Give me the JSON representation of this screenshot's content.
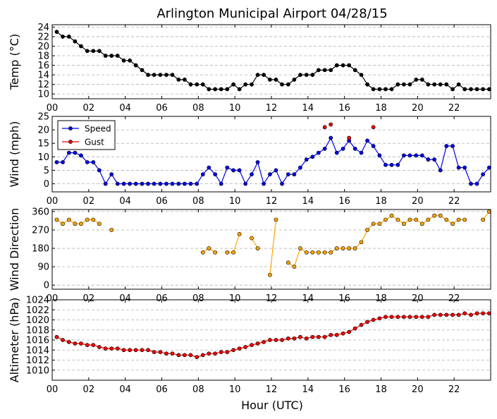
{
  "title": "Arlington Municipal Airport 04/28/15",
  "xlabel": "Hour (UTC)",
  "x_ticks": [
    "00",
    "02",
    "04",
    "06",
    "08",
    "10",
    "12",
    "14",
    "16",
    "18",
    "20",
    "22"
  ],
  "colors": {
    "temp": "#000000",
    "speed": "#0000ee",
    "gust": "#ee0000",
    "dir": "#ffa500",
    "alt": "#ee0000",
    "grid": "#b0b0b0"
  },
  "chart_data": [
    {
      "type": "line",
      "ylabel": "Temp (°C)",
      "ylim": [
        9,
        24.5
      ],
      "yticks": [
        10,
        12,
        14,
        16,
        18,
        20,
        22,
        24
      ],
      "xlim": [
        0,
        24
      ],
      "series": [
        {
          "name": "Temp",
          "x": [
            0.25,
            0.58,
            0.92,
            1.25,
            1.58,
            1.92,
            2.25,
            2.58,
            2.92,
            3.25,
            3.58,
            3.92,
            4.25,
            4.58,
            4.92,
            5.25,
            5.58,
            5.92,
            6.25,
            6.58,
            6.92,
            7.25,
            7.58,
            7.92,
            8.25,
            8.58,
            8.92,
            9.25,
            9.58,
            9.92,
            10.25,
            10.58,
            10.92,
            11.25,
            11.58,
            11.92,
            12.25,
            12.58,
            12.92,
            13.25,
            13.58,
            13.92,
            14.25,
            14.58,
            14.92,
            15.25,
            15.58,
            15.92,
            16.25,
            16.58,
            16.92,
            17.25,
            17.58,
            17.92,
            18.25,
            18.58,
            18.92,
            19.25,
            19.58,
            19.92,
            20.25,
            20.58,
            20.92,
            21.25,
            21.58,
            21.92,
            22.25,
            22.58,
            22.92,
            23.25,
            23.58,
            23.92
          ],
          "values": [
            23,
            22,
            22,
            21,
            20,
            19,
            19,
            19,
            18,
            18,
            18,
            17,
            17,
            16,
            15,
            14,
            14,
            14,
            14,
            14,
            13,
            13,
            12,
            12,
            12,
            11,
            11,
            11,
            11,
            12,
            11,
            12,
            12,
            14,
            14,
            13,
            13,
            12,
            12,
            13,
            14,
            14,
            14,
            15,
            15,
            15,
            16,
            16,
            16,
            15,
            14,
            12,
            11,
            11,
            11,
            11,
            12,
            12,
            12,
            13,
            13,
            12,
            12,
            12,
            12,
            11,
            12,
            11,
            11,
            11,
            11,
            11
          ]
        }
      ]
    },
    {
      "type": "line",
      "ylabel": "Wind (mph)",
      "ylim": [
        -3,
        25
      ],
      "yticks": [
        0,
        5,
        10,
        15,
        20,
        25
      ],
      "xlim": [
        0,
        24
      ],
      "legend": {
        "position": "top-left",
        "labels": [
          "Speed",
          "Gust"
        ]
      },
      "series": [
        {
          "name": "Speed",
          "x": [
            0.25,
            0.58,
            0.92,
            1.25,
            1.58,
            1.92,
            2.25,
            2.58,
            2.92,
            3.25,
            3.58,
            3.92,
            4.25,
            4.58,
            4.92,
            5.25,
            5.58,
            5.92,
            6.25,
            6.58,
            6.92,
            7.25,
            7.58,
            7.92,
            8.25,
            8.58,
            8.92,
            9.25,
            9.58,
            9.92,
            10.25,
            10.58,
            10.92,
            11.25,
            11.58,
            11.92,
            12.25,
            12.58,
            12.92,
            13.25,
            13.58,
            13.92,
            14.25,
            14.58,
            14.92,
            15.25,
            15.58,
            15.92,
            16.25,
            16.58,
            16.92,
            17.25,
            17.58,
            17.92,
            18.25,
            18.58,
            18.92,
            19.25,
            19.58,
            19.92,
            20.25,
            20.58,
            20.92,
            21.25,
            21.58,
            21.92,
            22.25,
            22.58,
            22.92,
            23.25,
            23.58,
            23.92
          ],
          "values": [
            8,
            8,
            11.5,
            11.5,
            10.5,
            8,
            8,
            5,
            0,
            3.5,
            0,
            0,
            0,
            0,
            0,
            0,
            0,
            0,
            0,
            0,
            0,
            0,
            0,
            0,
            3.5,
            6,
            3.5,
            0,
            6,
            5,
            5,
            0,
            3.5,
            8,
            0,
            3.5,
            5,
            0,
            3.5,
            3.5,
            6,
            9,
            10,
            11.5,
            13,
            17,
            11.5,
            13,
            16,
            13,
            11.5,
            16,
            14,
            10.5,
            7,
            7,
            7,
            10.5,
            10.5,
            10.5,
            10.5,
            9,
            9,
            5,
            14,
            14,
            6,
            6,
            0,
            0,
            3.5,
            6
          ]
        },
        {
          "name": "Gust",
          "points": [
            [
              14.92,
              21
            ],
            [
              15.25,
              22
            ],
            [
              16.25,
              17
            ],
            [
              17.58,
              21
            ]
          ]
        }
      ]
    },
    {
      "type": "line",
      "ylabel": "Wind Direction",
      "ylim": [
        -20,
        370
      ],
      "yticks": [
        0,
        90,
        180,
        270,
        360
      ],
      "xlim": [
        0,
        24
      ],
      "series": [
        {
          "name": "Wind Direction",
          "segments": [
            [
              [
                0.25,
                320
              ],
              [
                0.58,
                300
              ],
              [
                0.92,
                320
              ],
              [
                1.25,
                300
              ],
              [
                1.58,
                300
              ],
              [
                1.92,
                320
              ],
              [
                2.25,
                320
              ],
              [
                2.58,
                300
              ]
            ],
            [
              [
                3.25,
                270
              ]
            ],
            [
              [
                8.25,
                160
              ],
              [
                8.58,
                180
              ],
              [
                8.92,
                160
              ]
            ],
            [
              [
                9.58,
                160
              ],
              [
                9.92,
                160
              ],
              [
                10.25,
                250
              ]
            ],
            [
              [
                10.92,
                230
              ],
              [
                11.25,
                180
              ]
            ],
            [
              [
                11.92,
                50
              ],
              [
                12.25,
                320
              ]
            ],
            [
              [
                12.92,
                110
              ],
              [
                13.25,
                90
              ],
              [
                13.58,
                180
              ],
              [
                13.92,
                160
              ],
              [
                14.25,
                160
              ],
              [
                14.58,
                160
              ],
              [
                14.92,
                160
              ],
              [
                15.25,
                160
              ],
              [
                15.58,
                180
              ],
              [
                15.92,
                180
              ],
              [
                16.25,
                180
              ],
              [
                16.58,
                180
              ],
              [
                16.92,
                210
              ],
              [
                17.25,
                270
              ],
              [
                17.58,
                300
              ],
              [
                17.92,
                300
              ],
              [
                18.25,
                320
              ],
              [
                18.58,
                340
              ],
              [
                18.92,
                320
              ],
              [
                19.25,
                300
              ],
              [
                19.58,
                320
              ],
              [
                19.92,
                320
              ],
              [
                20.25,
                300
              ],
              [
                20.58,
                320
              ],
              [
                20.92,
                340
              ],
              [
                21.25,
                340
              ],
              [
                21.58,
                320
              ],
              [
                21.92,
                300
              ],
              [
                22.25,
                320
              ],
              [
                22.58,
                320
              ]
            ],
            [
              [
                23.58,
                320
              ],
              [
                23.92,
                360
              ]
            ]
          ]
        }
      ]
    },
    {
      "type": "line",
      "ylabel": "Altimeter (hPa)",
      "ylim": [
        1008,
        1024
      ],
      "yticks": [
        1010,
        1012,
        1014,
        1016,
        1018,
        1020,
        1022,
        1024
      ],
      "xlim": [
        0,
        24
      ],
      "series": [
        {
          "name": "Altimeter",
          "x": [
            0.25,
            0.58,
            0.92,
            1.25,
            1.58,
            1.92,
            2.25,
            2.58,
            2.92,
            3.25,
            3.58,
            3.92,
            4.25,
            4.58,
            4.92,
            5.25,
            5.58,
            5.92,
            6.25,
            6.58,
            6.92,
            7.25,
            7.58,
            7.92,
            8.25,
            8.58,
            8.92,
            9.25,
            9.58,
            9.92,
            10.25,
            10.58,
            10.92,
            11.25,
            11.58,
            11.92,
            12.25,
            12.58,
            12.92,
            13.25,
            13.58,
            13.92,
            14.25,
            14.58,
            14.92,
            15.25,
            15.58,
            15.92,
            16.25,
            16.58,
            16.92,
            17.25,
            17.58,
            17.92,
            18.25,
            18.58,
            18.92,
            19.25,
            19.58,
            19.92,
            20.25,
            20.58,
            20.92,
            21.25,
            21.58,
            21.92,
            22.25,
            22.58,
            22.92,
            23.25,
            23.58,
            23.92
          ],
          "values": [
            1016.6,
            1016,
            1015.6,
            1015.3,
            1015.3,
            1015,
            1015,
            1014.6,
            1014.3,
            1014.3,
            1014.3,
            1014,
            1014,
            1014,
            1014,
            1014,
            1013.6,
            1013.6,
            1013.3,
            1013.3,
            1013,
            1013,
            1013,
            1012.6,
            1013,
            1013.3,
            1013.3,
            1013.6,
            1013.6,
            1014,
            1014.3,
            1014.6,
            1015,
            1015.3,
            1015.6,
            1016,
            1016,
            1016,
            1016.3,
            1016.3,
            1016.6,
            1016.3,
            1016.6,
            1016.6,
            1016.6,
            1017,
            1017,
            1017.3,
            1017.6,
            1018.3,
            1019,
            1019.6,
            1020,
            1020.3,
            1020.6,
            1020.6,
            1020.6,
            1020.6,
            1020.6,
            1020.6,
            1020.6,
            1020.6,
            1021,
            1021,
            1021,
            1021,
            1021,
            1021.3,
            1021,
            1021.3,
            1021.3,
            1021.3
          ]
        }
      ]
    }
  ]
}
